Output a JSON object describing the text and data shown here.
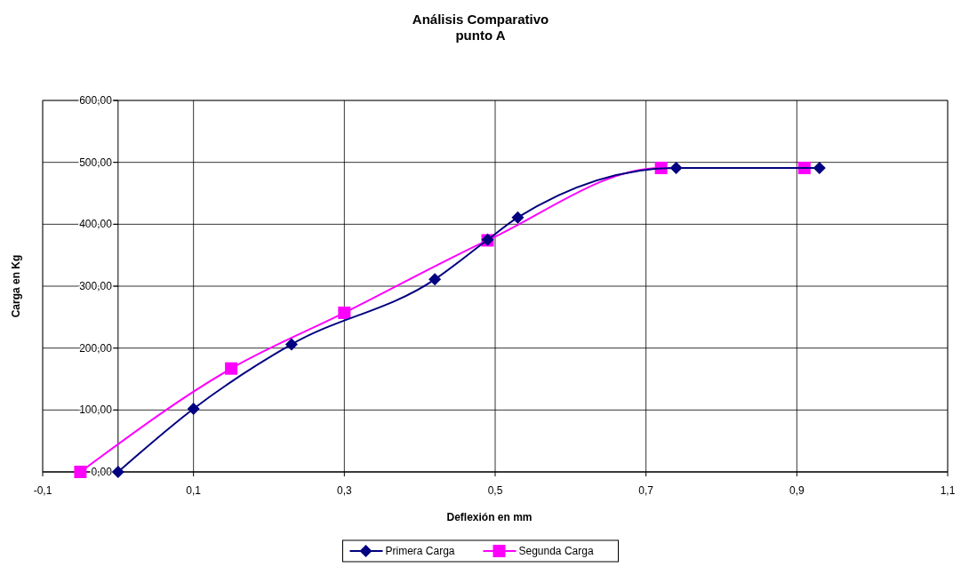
{
  "chart_data": {
    "type": "line",
    "title": "Análisis Comparativo\npunto A",
    "xlabel": "Deflexión en mm",
    "ylabel": "Carga en Kg",
    "xlim": [
      -0.1,
      1.1
    ],
    "xticks": [
      {
        "value": -0.1,
        "label": "-0,1"
      },
      {
        "value": 0.1,
        "label": "0,1"
      },
      {
        "value": 0.3,
        "label": "0,3"
      },
      {
        "value": 0.5,
        "label": "0,5"
      },
      {
        "value": 0.7,
        "label": "0,7"
      },
      {
        "value": 0.9,
        "label": "0,9"
      },
      {
        "value": 1.1,
        "label": "1,1"
      }
    ],
    "ylim": [
      0,
      600
    ],
    "yticks": [
      {
        "value": 0,
        "label": "0,00"
      },
      {
        "value": 100,
        "label": "100,00"
      },
      {
        "value": 200,
        "label": "200,00"
      },
      {
        "value": 300,
        "label": "300,00"
      },
      {
        "value": 400,
        "label": "400,00"
      },
      {
        "value": 500,
        "label": "500,00"
      },
      {
        "value": 600,
        "label": "600,00"
      }
    ],
    "grid": true,
    "legend": "bottom",
    "series": [
      {
        "name": "Primera Carga",
        "color": "#000080",
        "marker": "diamond",
        "x": [
          0,
          0.1,
          0.23,
          0.42,
          0.49,
          0.53,
          0.74,
          0.93
        ],
        "values": [
          0,
          102,
          206,
          311,
          375,
          411,
          491,
          491
        ]
      },
      {
        "name": "Segunda Carga",
        "color": "#ff00ff",
        "marker": "square",
        "x": [
          -0.05,
          0.15,
          0.3,
          0.49,
          0.72,
          0.91
        ],
        "values": [
          0,
          167,
          257,
          374,
          491,
          491
        ]
      }
    ]
  }
}
